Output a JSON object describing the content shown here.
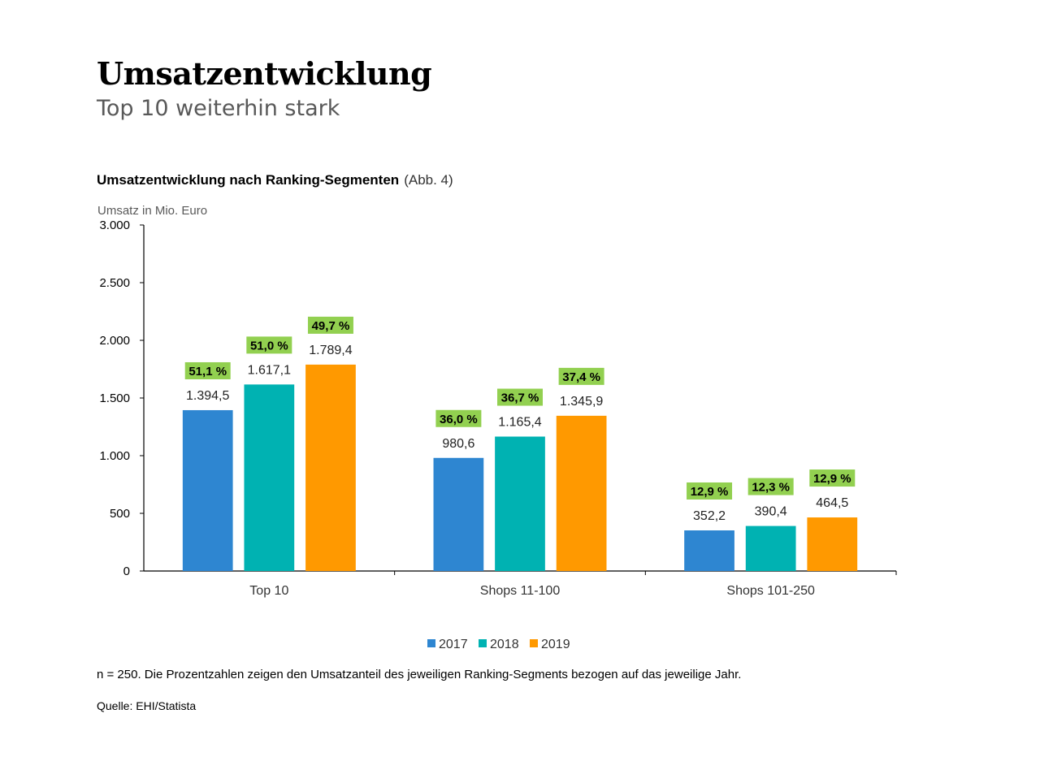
{
  "header": {
    "title": "Umsatzentwicklung",
    "subtitle": "Top 10 weiterhin stark"
  },
  "chart_heading": {
    "main": "Umsatzentwicklung  nach Ranking-Segmenten",
    "ref": "(Abb. 4)"
  },
  "chart_data": {
    "type": "bar",
    "ylabel": "Umsatz in Mio. Euro",
    "ylim": [
      0,
      3000
    ],
    "yticks": [
      0,
      500,
      1000,
      1500,
      2000,
      2500,
      3000
    ],
    "ytick_labels": [
      "0",
      "500",
      "1.000",
      "1.500",
      "2.000",
      "2.500",
      "3.000"
    ],
    "categories": [
      "Top 10",
      "Shops 11-100",
      "Shops 101-250"
    ],
    "series": [
      {
        "name": "2017",
        "color": "#2E86D1",
        "values": [
          1394.5,
          980.6,
          352.2
        ],
        "value_labels": [
          "1.394,5",
          "980,6",
          "352,2"
        ],
        "share_labels": [
          "51,1 %",
          "36,0 %",
          "12,9 %"
        ]
      },
      {
        "name": "2018",
        "color": "#00B2B2",
        "values": [
          1617.1,
          1165.4,
          390.4
        ],
        "value_labels": [
          "1.617,1",
          "1.165,4",
          "390,4"
        ],
        "share_labels": [
          "51,0 %",
          "36,7 %",
          "12,3 %"
        ]
      },
      {
        "name": "2019",
        "color": "#FF9900",
        "values": [
          1789.4,
          1345.9,
          464.5
        ],
        "value_labels": [
          "1.789,4",
          "1.345,9",
          "464,5"
        ],
        "share_labels": [
          "49,7 %",
          "37,4 %",
          "12,9 %"
        ]
      }
    ],
    "share_badge_color": "#92D050",
    "legend_position": "bottom-center",
    "grid": false
  },
  "footnote": "n = 250. Die Prozentzahlen zeigen den Umsatzanteil des jeweiligen Ranking-Segments bezogen auf das jeweilige Jahr.",
  "source": "Quelle: EHI/Statista"
}
